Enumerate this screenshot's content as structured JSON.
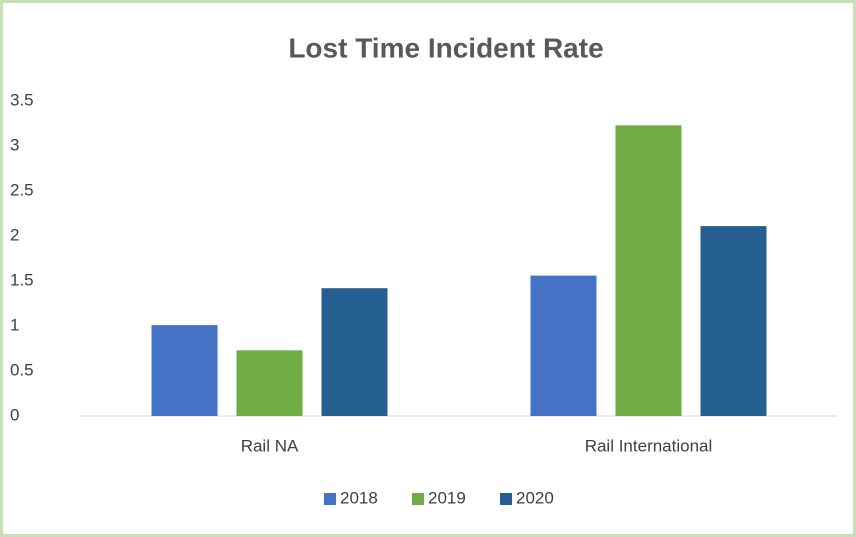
{
  "chart_data": {
    "type": "bar",
    "title": "Lost Time Incident Rate",
    "categories": [
      "Rail NA",
      "Rail International"
    ],
    "series": [
      {
        "name": "2018",
        "color": "#4472c4",
        "values": [
          1.01,
          1.56
        ]
      },
      {
        "name": "2019",
        "color": "#70ad47",
        "values": [
          0.73,
          3.23
        ]
      },
      {
        "name": "2020",
        "color": "#255e91",
        "values": [
          1.42,
          2.11
        ]
      }
    ],
    "ylim": [
      0,
      3.5
    ],
    "yticks": [
      0,
      0.5,
      1,
      1.5,
      2,
      2.5,
      3,
      3.5
    ],
    "grid": false,
    "legend": "bottom"
  }
}
